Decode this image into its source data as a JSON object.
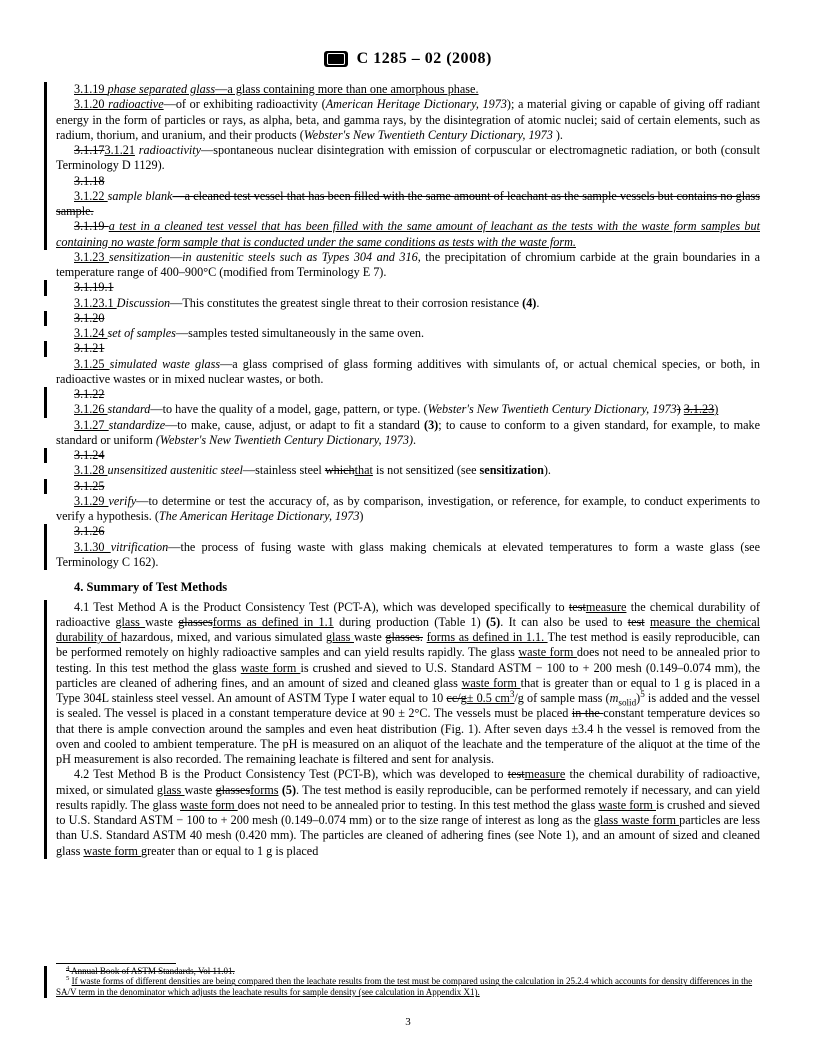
{
  "header": {
    "designation": "C 1285 – 02 (2008)"
  },
  "definitions": [
    {
      "num": "3.1.19",
      "bar": true,
      "body": "<span class='u'>3.1.19 </span><span class='u i'>phase separated glass</span><span class='u'>—a glass containing more than one amorphous phase.</span>"
    },
    {
      "num": "3.1.20",
      "bar": true,
      "body": "<span class='u'>3.1.20 </span><span class='u i'>radioactive</span>—of or exhibiting radioactivity (<span class='i'>American Heritage Dictionary, 1973</span>); a material giving or capable of giving off radiant energy in the form of particles or rays, as alpha, beta, and gamma rays, by the disintegration of atomic nuclei; said of certain elements, such as radium, thorium, and uranium, and their products (<span class='i'>Webster's New Twentieth Century Dictionary, 1973</span> )."
    },
    {
      "num": "3.1.21",
      "bar": true,
      "body": "<span class='s'>3.1.17</span><span class='u'>3.1.21</span> <span class='i'>radioactivity</span>—spontaneous nuclear disintegration with emission of corpuscular or electromagnetic radiation, or both (consult Terminology D 1129)."
    },
    {
      "num": "3.1.18s",
      "bar": true,
      "body": "<span class='s'>3.1.18</span>"
    },
    {
      "num": "3.1.22",
      "bar": true,
      "body": "<span class='u'>3.1.22 </span><span class='i'>sample blank</span><span class='s'>—a cleaned test vessel that has been filled with the same amount of leachant as the sample vessels but contains no glass sample.</span>"
    },
    {
      "num": "3.1.19s",
      "bar": true,
      "body": "<span class='s'>3.1.19 </span><span class='u i'>a test in a cleaned test vessel that has been filled with the same amount of leachant as the tests with the waste form samples but containing no waste form sample that is conducted under the same conditions as tests with the waste form.</span>"
    },
    {
      "num": "3.1.23",
      "bar": false,
      "body": "<span class='u'>3.1.23 </span><span class='i'>sensitization</span>—<span class='i'>in austenitic steels such as Types 304 and 316</span>, the precipitation of chromium carbide at the grain boundaries in a temperature range of 400–900°C (modified from Terminology E 7)."
    },
    {
      "num": "3.1.19.1s",
      "bar": true,
      "body": "<span class='s'>3.1.19.1</span>"
    },
    {
      "num": "3.1.23.1",
      "bar": false,
      "body": "<span class='u'>3.1.23.1 </span><span class='i'>Discussion</span>—This constitutes the greatest single threat to their corrosion resistance <span class='b'>(4)</span>."
    },
    {
      "num": "3.1.20s",
      "bar": true,
      "body": "<span class='s'>3.1.20</span>"
    },
    {
      "num": "3.1.24",
      "bar": false,
      "body": "<span class='u'>3.1.24 </span><span class='i'>set of samples</span>—samples tested simultaneously in the same oven."
    },
    {
      "num": "3.1.21s",
      "bar": true,
      "body": "<span class='s'>3.1.21</span>"
    },
    {
      "num": "3.1.25",
      "bar": false,
      "body": "<span class='u'>3.1.25 </span><span class='i'>simulated waste glass</span>—a glass comprised of glass forming additives with simulants of, or actual chemical species, or both, in radioactive wastes or in mixed nuclear wastes, or both."
    },
    {
      "num": "3.1.22s",
      "bar": true,
      "body": "<span class='s'>3.1.22</span>"
    },
    {
      "num": "3.1.26",
      "bar": true,
      "body": "<span class='u'>3.1.26 </span><span class='i'>standard</span>—to have the quality of a model, gage, pattern, or type. (<span class='i'>Webster's New Twentieth Century Dictionary, 1973</span><span class='s'>)</span> <span class='us'>3.1.23</span><span class='u'>)</span>"
    },
    {
      "num": "3.1.27",
      "bar": false,
      "body": "<span class='u'>3.1.27 </span><span class='i'>standardize</span>—to make, cause, adjust, or adapt to fit a standard <span class='b'>(3)</span>; to cause to conform to a given standard, for example, to make standard or uniform <span class='i'>(Webster's New Twentieth Century Dictionary, 1973)</span>."
    },
    {
      "num": "3.1.24s",
      "bar": true,
      "body": "<span class='s'>3.1.24</span>"
    },
    {
      "num": "3.1.28",
      "bar": false,
      "body": "<span class='u'>3.1.28 </span><span class='i'>unsensitized austenitic steel</span>—stainless steel <span class='s'>which</span><span class='u'>that</span> is not sensitized (see <span class='b'>sensitization</span>)."
    },
    {
      "num": "3.1.25s",
      "bar": true,
      "body": "<span class='s'>3.1.25</span>"
    },
    {
      "num": "3.1.29",
      "bar": false,
      "body": "<span class='u'>3.1.29 </span><span class='i'>verify</span>—to determine or test the accuracy of, as by comparison, investigation, or reference, for example, to conduct experiments to verify a hypothesis. (<span class='i'>The American Heritage Dictionary, 1973</span>)"
    },
    {
      "num": "3.1.26s",
      "bar": true,
      "body": "<span class='s'>3.1.26</span>"
    },
    {
      "num": "3.1.30",
      "bar": true,
      "body": "<span class='u'>3.1.30 </span><span class='i'>vitrification</span>—the process of fusing waste with glass making chemicals at elevated temperatures to form a waste glass (see Terminology C 162)."
    }
  ],
  "section4": {
    "title": "4. Summary of Test Methods",
    "p41": "4.1 Test Method A is the Product Consistency Test (PCT-A), which was developed specifically to <span class='s'>test</span><span class='u'>measure</span> the chemical durability of radioactive <span class='u'>glass </span>waste <span class='s'>glasses</span><span class='u'>forms as defined in 1.1</span> during production (Table 1) <span class='b'>(5)</span>. It can also be used to <span class='s'>test</span> <span class='u'>measure the chemical durability of </span>hazardous, mixed, and various simulated <span class='u'>glass </span>waste <span class='s'>glasses.</span> <span class='u'>forms as defined in 1.1. </span>The test method is easily reproducible, can be performed remotely on highly radioactive samples and can yield results rapidly. The glass <span class='u'>waste form </span>does not need to be annealed prior to testing. In this test method the glass <span class='u'>waste form </span>is crushed and sieved to U.S. Standard ASTM − 100 to + 200 mesh (0.149–0.074 mm), the particles are cleaned of adhering fines, and an amount of sized and cleaned glass <span class='u'>waste form </span>that is greater than or equal to 1 g is placed in a Type 304L stainless steel vessel. An amount of ASTM Type I water equal to 10 <span class='s'>cc/g</span><span class='u'>± 0.5 cm<sup>3</sup></span>/g of sample mass (<span class='i'>m</span><sub>solid</sub>)<sup>5</sup> is added and the vessel is sealed. The vessel is placed in a constant temperature device at 90 ± 2°C. The vessels must be placed <span class='s'>in the </span>constant temperature devices so that there is ample convection around the samples and even heat distribution (Fig. 1). After seven days ±3.4 h the vessel is removed from the oven and cooled to ambient temperature. The pH is measured on an aliquot of the leachate and the temperature of the aliquot at the time of the pH measurement is also recorded. The remaining leachate is filtered and sent for analysis.",
    "p42": "4.2 Test Method B is the Product Consistency Test (PCT-B), which was developed to <span class='s'>test</span><span class='u'>measure</span> the chemical durability of radioactive, mixed, or simulated <span class='u'>glass </span>waste <span class='s'>glasses</span><span class='u'>forms</span> <span class='b'>(5)</span>. The test method is easily reproducible, can be performed remotely if necessary, and can yield results rapidly. The glass <span class='u'>waste form </span>does not need to be annealed prior to testing. In this test method the glass <span class='u'>waste form </span>is crushed and sieved to U.S. Standard ASTM − 100 to + 200 mesh (0.149–0.074 mm) or to the size range of interest as long as the <span class='u'>glass waste form </span>particles are less than U.S. Standard ASTM 40 mesh (0.420 mm). The particles are cleaned of adhering fines (see Note 1), and an amount of sized and cleaned glass <span class='u'>waste form </span>greater than or equal to 1 g is placed"
  },
  "footnotes": {
    "f4": "<span class='s4'><sup>4</sup> Annual Book of ASTM Standards, Vol 11.01.</span>",
    "f5": "<sup>5</sup> <span class='u'>If waste forms of different densities are being compared then the leachate results from the test must be compared using the calculation in 25.2.4 which accounts for density differences in the SA/V term in the denominator which adjusts the leachate results for sample density (see calculation in Appendix X1).</span>"
  },
  "pagenum": "3"
}
